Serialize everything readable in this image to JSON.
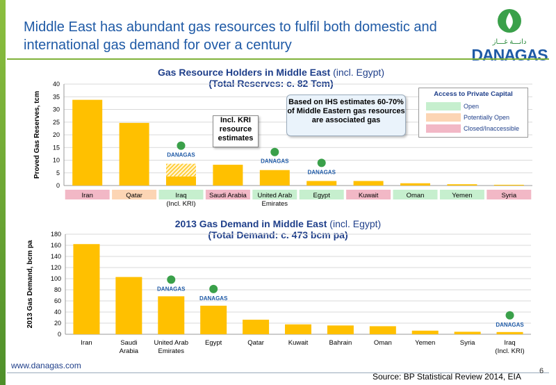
{
  "slide": {
    "title": "Middle East has abundant gas resources to fulfil both domestic and international gas demand for over a century",
    "url": "www.danagas.com",
    "source": "Source: BP Statistical Review 2014, EIA",
    "page_number": "6"
  },
  "logo": {
    "text": "DANAGAS",
    "arabic": "دانـــة غـــاز"
  },
  "colors": {
    "bar": "#FFC000",
    "open": "#C6EFCE",
    "potentially_open": "#FCD5B4",
    "closed": "#F2B8C6",
    "title": "#1F5AA6",
    "accent": "#7FB23A"
  },
  "chart_data": [
    {
      "type": "bar",
      "title": "Gas Resource Holders in Middle East",
      "title_suffix": "(incl. Egypt)",
      "subtitle": "(Total Reserves: c. 82 Tcm)",
      "ylabel": "Proved Gas Reserves, tcm",
      "ylim": [
        0,
        40
      ],
      "yticks": [
        0,
        5,
        10,
        15,
        20,
        25,
        30,
        35,
        40
      ],
      "grid": true,
      "categories": [
        "Iran",
        "Qatar",
        "Iraq\n(Incl. KRI)",
        "Saudi Arabia",
        "United Arab\nEmirates",
        "Egypt",
        "Kuwait",
        "Oman",
        "Yemen",
        "Syria"
      ],
      "values": [
        33.8,
        24.7,
        3.6,
        8.2,
        6.1,
        1.8,
        1.8,
        0.9,
        0.5,
        0.3
      ],
      "kri_estimates": [
        0,
        0,
        5.0,
        0,
        0,
        0,
        0,
        0,
        0,
        0
      ],
      "access": [
        "closed",
        "potentially_open",
        "open",
        "closed",
        "open",
        "open",
        "closed",
        "open",
        "open",
        "closed"
      ],
      "legend": {
        "title": "Access to Private Capital",
        "placement": "top-right",
        "items": [
          {
            "key": "open",
            "label": "Open"
          },
          {
            "key": "potentially_open",
            "label": "Potentially Open"
          },
          {
            "key": "closed",
            "label": "Closed/Inaccessible"
          }
        ]
      },
      "danagas_presence": [
        "Iraq\n(Incl. KRI)",
        "United Arab\nEmirates",
        "Egypt"
      ],
      "annotations": [
        "Incl. KRI resource estimates",
        "Based on IHS estimates 60-70% of Middle Eastern gas resources are associated gas"
      ]
    },
    {
      "type": "bar",
      "title": "2013 Gas Demand in Middle East",
      "title_suffix": "(incl. Egypt)",
      "subtitle": "(Total Demand: c. 473 bcm pa)",
      "ylabel": "2013 Gas Demand, bcm pa",
      "ylim": [
        0,
        180
      ],
      "yticks": [
        0,
        20,
        40,
        60,
        80,
        100,
        120,
        140,
        160,
        180
      ],
      "grid": true,
      "categories": [
        "Iran",
        "Saudi\nArabia",
        "United Arab\nEmirates",
        "Egypt",
        "Qatar",
        "Kuwait",
        "Bahrain",
        "Oman",
        "Yemen",
        "Syria",
        "Iraq\n(Incl. KRI)"
      ],
      "values": [
        162.2,
        103.0,
        68.3,
        51.4,
        26.2,
        17.8,
        15.8,
        14.5,
        6.5,
        4.5,
        4.0
      ],
      "danagas_presence": [
        "United Arab\nEmirates",
        "Egypt",
        "Iraq\n(Incl. KRI)"
      ]
    }
  ],
  "callouts": {
    "kri": "Incl. KRI resource estimates",
    "ihs": "Based on IHS estimates 60-70% of Middle Eastern gas resources are associated gas"
  }
}
